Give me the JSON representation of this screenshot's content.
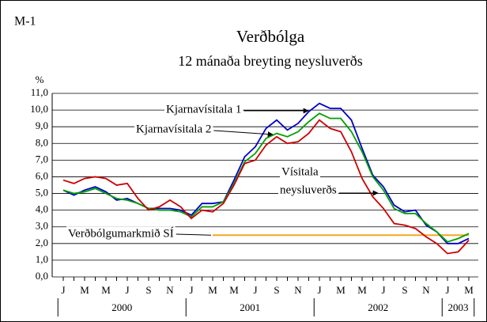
{
  "chart_data": {
    "type": "line",
    "id_label": "M-1",
    "title": "Verðbólga",
    "subtitle": "12 mánaða breyting neysluverðs",
    "y_unit": "%",
    "categories": [
      "J",
      null,
      "M",
      null,
      "M",
      null,
      "J",
      null,
      "S",
      null,
      "N",
      null,
      "J",
      null,
      "M",
      null,
      "M",
      null,
      "J",
      null,
      "S",
      null,
      "N",
      null,
      "J",
      null,
      "M",
      null,
      "M",
      null,
      "J",
      null,
      "S",
      null,
      "N",
      null,
      "J",
      null,
      "M"
    ],
    "years": [
      "2000",
      "2001",
      "2002",
      "2003"
    ],
    "ylim": [
      0,
      11
    ],
    "yticks": [
      {
        "value": 0,
        "label": "0,0"
      },
      {
        "value": 1,
        "label": "1,0"
      },
      {
        "value": 2,
        "label": "2,0"
      },
      {
        "value": 3,
        "label": "3,0"
      },
      {
        "value": 4,
        "label": "4,0"
      },
      {
        "value": 5,
        "label": "5,0"
      },
      {
        "value": 6,
        "label": "6,0"
      },
      {
        "value": 7,
        "label": "7,0"
      },
      {
        "value": 8,
        "label": "8,0"
      },
      {
        "value": 9,
        "label": "9,0"
      },
      {
        "value": 10,
        "label": "10,0"
      },
      {
        "value": 11,
        "label": "11,0"
      }
    ],
    "grid": true,
    "series": [
      {
        "name": "Kjarnavísitala 1",
        "color": "#0000c8",
        "values": [
          5.2,
          4.9,
          5.2,
          5.4,
          5.1,
          4.6,
          4.7,
          4.4,
          4.1,
          4.1,
          4.1,
          4.0,
          3.7,
          4.4,
          4.4,
          4.5,
          5.8,
          7.2,
          7.8,
          8.9,
          9.4,
          8.8,
          9.2,
          9.9,
          10.4,
          10.1,
          10.1,
          9.4,
          7.7,
          6.1,
          5.4,
          4.3,
          3.9,
          4.0,
          3.1,
          2.7,
          2.0,
          2.0,
          2.3
        ]
      },
      {
        "name": "Kjarnavísitala 2",
        "color": "#00a000",
        "values": [
          5.2,
          5.0,
          5.1,
          5.3,
          5.0,
          4.7,
          4.6,
          4.4,
          4.1,
          4.0,
          4.0,
          3.9,
          3.6,
          4.2,
          4.2,
          4.5,
          5.6,
          6.9,
          7.4,
          8.3,
          8.6,
          8.4,
          8.7,
          9.3,
          9.8,
          9.5,
          9.5,
          8.7,
          7.5,
          6.0,
          5.2,
          4.1,
          3.8,
          3.8,
          3.2,
          2.7,
          2.1,
          2.3,
          2.6
        ]
      },
      {
        "name": [
          "Vísitala",
          "neysluverðs"
        ],
        "color": "#cc0000",
        "values": [
          5.8,
          5.6,
          5.9,
          6.0,
          5.9,
          5.5,
          5.6,
          4.7,
          4.0,
          4.2,
          4.6,
          4.2,
          3.5,
          4.0,
          3.9,
          4.4,
          5.5,
          6.8,
          7.0,
          7.9,
          8.4,
          8.0,
          8.1,
          8.6,
          9.4,
          8.9,
          8.7,
          7.5,
          5.9,
          4.8,
          4.1,
          3.2,
          3.1,
          2.9,
          2.4,
          2.0,
          1.4,
          1.5,
          2.2
        ]
      },
      {
        "name": "Verðbólgumarkmið SÍ",
        "color": "#f5a623",
        "values": [
          null,
          null,
          null,
          null,
          null,
          null,
          null,
          null,
          null,
          null,
          null,
          null,
          null,
          null,
          2.5,
          2.5,
          2.5,
          2.5,
          2.5,
          2.5,
          2.5,
          2.5,
          2.5,
          2.5,
          2.5,
          2.5,
          2.5,
          2.5,
          2.5,
          2.5,
          2.5,
          2.5,
          2.5,
          2.5,
          2.5,
          2.5,
          2.5,
          2.5,
          2.5
        ]
      }
    ]
  }
}
